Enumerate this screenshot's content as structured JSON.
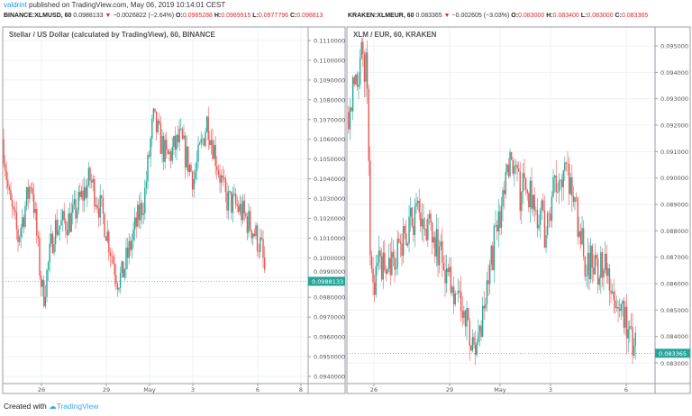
{
  "header": {
    "author": "valdrint",
    "published": "published on TradingView.com, May 06, 2019 10:14:01 CEST"
  },
  "left": {
    "symbol": "BINANCE:XLMUSD, 60",
    "last": "0.0988133",
    "change": "−0.0026822 (−2.64%)",
    "o_label": "O:",
    "o": "0.0985288",
    "h_label": "H:",
    "h": "0.0989915",
    "l_label": "L:",
    "l": "0.0977796",
    "c_label": "C:",
    "c": "0.098813",
    "title": "Stellar / US Dollar (calculated by TradingView), 60, BINANCE",
    "price_badge": "0.0988133"
  },
  "right": {
    "symbol": "KRAKEN:XLMEUR, 60",
    "last": "0.083365",
    "change": "−0.002605 (−3.03%)",
    "o_label": "O:",
    "o": "0.083000",
    "h_label": "H:",
    "h": "0.083400",
    "l_label": "L:",
    "l": "0.083000",
    "c_label": "C:",
    "c": "0.083365",
    "title": "XLM / EUR, 60, KRAKEN",
    "price_badge": "0.083365"
  },
  "footer": {
    "created_with": "Created with",
    "brand": "TradingView"
  },
  "colors": {
    "up": "#26a69a",
    "down": "#ef5350",
    "badge": "#26a69a",
    "grid": "#eef2f6",
    "axis": "#9a9ea8"
  },
  "chart_data": [
    {
      "type": "candlestick",
      "title": "Stellar / US Dollar (calculated by TradingView), 60, BINANCE",
      "y_ticks": [
        "0.0940000",
        "0.0950000",
        "0.0960000",
        "0.0970000",
        "0.0980000",
        "0.0990000",
        "0.1000000",
        "0.1010000",
        "0.1020000",
        "0.1030000",
        "0.1040000",
        "0.1050000",
        "0.1060000",
        "0.1070000",
        "0.1080000",
        "0.1090000",
        "0.1100000",
        "0.1110000"
      ],
      "x_ticks": [
        "26",
        "29",
        "May",
        "3",
        "6",
        "8"
      ],
      "x_tick_dates": [
        "2019-04-26",
        "2019-04-29",
        "2019-05-01",
        "2019-05-03",
        "2019-05-06",
        "2019-05-08"
      ],
      "approx_closes": [
        [
          "2019-04-24T05:00",
          0.106
        ],
        [
          "2019-04-24T12:00",
          0.103
        ],
        [
          "2019-04-24T22:00",
          0.101
        ],
        [
          "2019-04-25T13:00",
          0.104
        ],
        [
          "2019-04-25T23:00",
          0.099
        ],
        [
          "2019-04-26T02:00",
          0.098
        ],
        [
          "2019-04-26T14:00",
          0.1015
        ],
        [
          "2019-04-27T10:00",
          0.102
        ],
        [
          "2019-04-28T06:00",
          0.104
        ],
        [
          "2019-04-28T21:00",
          0.102
        ],
        [
          "2019-04-29T12:00",
          0.099
        ],
        [
          "2019-04-29T17:00",
          0.099
        ],
        [
          "2019-04-30T08:00",
          0.1015
        ],
        [
          "2019-04-30T18:00",
          0.103
        ],
        [
          "2019-05-01T04:00",
          0.107
        ],
        [
          "2019-05-01T19:00",
          0.105
        ],
        [
          "2019-05-02T10:00",
          0.106
        ],
        [
          "2019-05-03T01:00",
          0.104
        ],
        [
          "2019-05-03T16:00",
          0.107
        ],
        [
          "2019-05-04T02:00",
          0.105
        ],
        [
          "2019-05-04T12:00",
          0.103
        ],
        [
          "2019-05-05T03:00",
          0.1025
        ],
        [
          "2019-05-05T18:00",
          0.1015
        ],
        [
          "2019-05-06T04:00",
          0.1005
        ],
        [
          "2019-05-06T09:00",
          0.0988
        ]
      ]
    },
    {
      "type": "candlestick",
      "title": "XLM / EUR, 60, KRAKEN",
      "y_ticks": [
        "0.083000",
        "0.084000",
        "0.085000",
        "0.086000",
        "0.087000",
        "0.088000",
        "0.089000",
        "0.090000",
        "0.091000",
        "0.092000",
        "0.093000",
        "0.094000",
        "0.095000"
      ],
      "x_ticks": [
        "26",
        "29",
        "May",
        "3",
        "6"
      ],
      "x_tick_dates": [
        "2019-04-26",
        "2019-04-29",
        "2019-05-01",
        "2019-05-03",
        "2019-05-06"
      ],
      "approx_closes": [
        [
          "2019-04-24T23:00",
          0.0925
        ],
        [
          "2019-04-25T11:00",
          0.0945
        ],
        [
          "2019-04-25T18:00",
          0.094
        ],
        [
          "2019-04-25T21:00",
          0.086
        ],
        [
          "2019-04-26T04:00",
          0.0865
        ],
        [
          "2019-04-26T21:00",
          0.087
        ],
        [
          "2019-04-27T15:00",
          0.0885
        ],
        [
          "2019-04-28T08:00",
          0.088
        ],
        [
          "2019-04-28T21:00",
          0.0865
        ],
        [
          "2019-04-29T09:00",
          0.0855
        ],
        [
          "2019-04-29T18:00",
          0.084
        ],
        [
          "2019-04-30T03:00",
          0.0835
        ],
        [
          "2019-04-30T11:00",
          0.0855
        ],
        [
          "2019-04-30T20:00",
          0.088
        ],
        [
          "2019-05-01T09:00",
          0.0905
        ],
        [
          "2019-05-01T17:00",
          0.0895
        ],
        [
          "2019-05-02T06:00",
          0.0895
        ],
        [
          "2019-05-02T19:00",
          0.088
        ],
        [
          "2019-05-03T08:00",
          0.0905
        ],
        [
          "2019-05-03T21:00",
          0.0895
        ],
        [
          "2019-05-04T09:00",
          0.087
        ],
        [
          "2019-05-04T18:00",
          0.0865
        ],
        [
          "2019-05-05T07:00",
          0.0865
        ],
        [
          "2019-05-05T20:00",
          0.085
        ],
        [
          "2019-05-06T04:00",
          0.0845
        ],
        [
          "2019-05-06T09:00",
          0.0833
        ]
      ]
    }
  ]
}
